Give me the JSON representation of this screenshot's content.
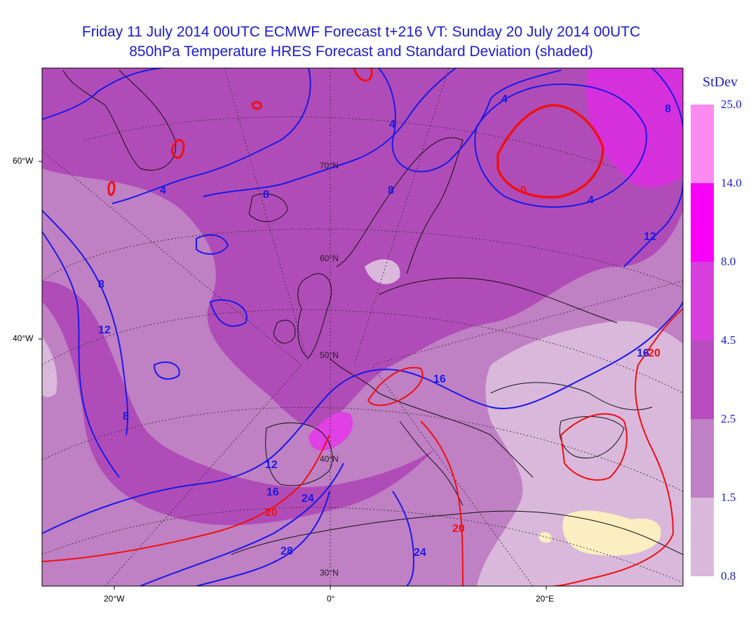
{
  "titles": {
    "line1": "Friday 11 July 2014 00UTC ECMWF Forecast t+216  VT: Sunday 20 July 2014 00UTC",
    "line2": "850hPa Temperature HRES Forecast and Standard Deviation (shaded)"
  },
  "legend": {
    "title": "StDev",
    "levels": [
      "25.0",
      "14.0",
      "8.0",
      "4.5",
      "2.5",
      "1.5",
      "0.8"
    ],
    "colors": [
      "#fc8af0",
      "#f800f8",
      "#d640dc",
      "#b84cc0",
      "#c080c4",
      "#dab8dc"
    ]
  },
  "axes": {
    "left_labels": [
      "60°W",
      "40°W"
    ],
    "bottom_labels": [
      "20°W",
      "0°",
      "20°E"
    ]
  },
  "map_labels": {
    "latitudes": [
      "70°N",
      "60°N",
      "50°N",
      "40°N",
      "30°N"
    ]
  },
  "contours": {
    "blue_labels": [
      "4",
      "4",
      "4",
      "4",
      "8",
      "8",
      "8",
      "8",
      "8",
      "12",
      "12",
      "12",
      "16",
      "16",
      "16",
      "24",
      "24",
      "28"
    ],
    "red_labels": [
      "0",
      "20",
      "20",
      "20"
    ]
  },
  "colors": {
    "title": "#1a1ad6",
    "blue_contour": "#1a1ae6",
    "red_contour": "#ee1111",
    "low_stdev_fill": "#fbeec0"
  }
}
